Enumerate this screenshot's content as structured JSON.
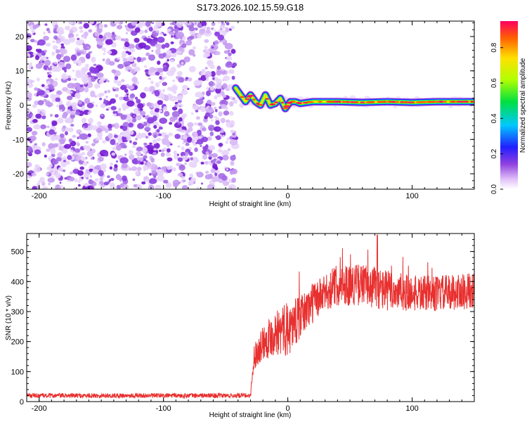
{
  "title": "S173.2026.102.15.59.G18",
  "chart_data": [
    {
      "type": "heatmap",
      "xlabel": "Height of straight line (km)",
      "ylabel": "Frequency (Hz)",
      "xlim": [
        -210,
        150
      ],
      "ylim": [
        -24.5,
        24.5
      ],
      "xticks": [
        -200,
        -100,
        0,
        100
      ],
      "yticks": [
        -20,
        -10,
        0,
        10,
        20
      ],
      "noise_region_x": [
        -210,
        -42
      ],
      "signal_start_x": -42,
      "signal_trace": {
        "x": [
          -42,
          -38,
          -34,
          -30,
          -26,
          -22,
          -18,
          -14,
          -10,
          -6,
          -2,
          2,
          6,
          10,
          20,
          40,
          60,
          80,
          100,
          120,
          150
        ],
        "freq": [
          5,
          3,
          1,
          3,
          1,
          0,
          3,
          0,
          0.5,
          2,
          -1,
          1,
          1,
          0.5,
          1,
          1,
          0.8,
          1,
          0.8,
          1,
          1
        ]
      },
      "colorbar": {
        "label": "Normalized spectral amplitude",
        "range": [
          0,
          0.95
        ],
        "ticks": [
          0.0,
          0.2,
          0.4,
          0.6,
          0.8
        ]
      }
    },
    {
      "type": "line",
      "xlabel": "Height of straight line (km)",
      "ylabel": "SNR (10 * v/v)",
      "xlim": [
        -210,
        150
      ],
      "ylim": [
        0,
        560
      ],
      "xticks": [
        -200,
        -100,
        0,
        100
      ],
      "yticks": [
        0,
        100,
        200,
        300,
        400,
        500
      ],
      "series": [
        {
          "name": "SNR",
          "color": "#e8302f",
          "x_breakpoints": [
            -210,
            -30,
            -27,
            -20,
            -10,
            0,
            10,
            20,
            30,
            40,
            60,
            80,
            100,
            120,
            150
          ],
          "y_trend": [
            20,
            20,
            150,
            200,
            230,
            240,
            280,
            330,
            360,
            390,
            390,
            370,
            360,
            360,
            370
          ],
          "y_noise_amplitude": [
            8,
            8,
            40,
            60,
            80,
            90,
            70,
            70,
            60,
            70,
            70,
            70,
            60,
            60,
            60
          ],
          "peak_value": 555
        }
      ]
    }
  ],
  "colors": {
    "noise_purple": "#7d20d8",
    "line_red": "#e8302f"
  }
}
